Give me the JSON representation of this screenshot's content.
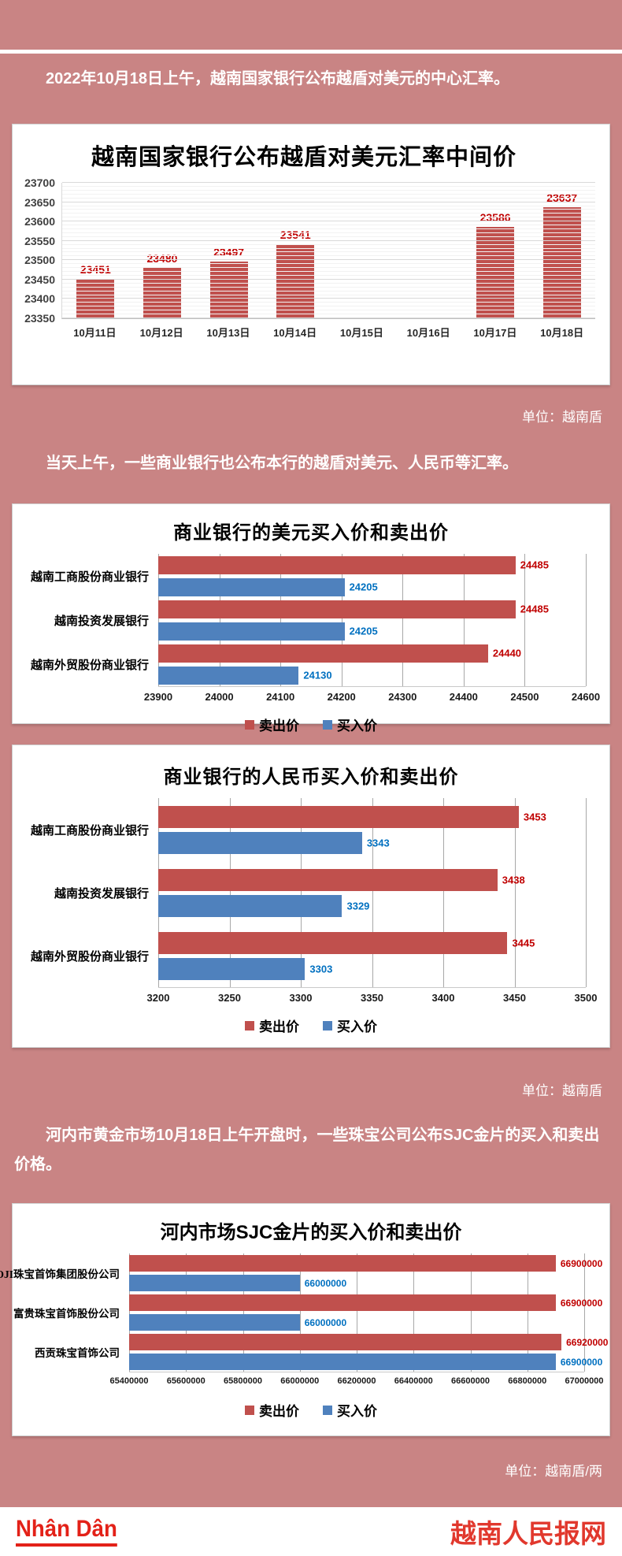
{
  "page": {
    "background": "#c98484",
    "paragraphs": {
      "p1": "2022年10月18日上午，越南国家银行公布越盾对美元的中心汇率。",
      "p2": "当天上午，一些商业银行也公布本行的越盾对美元、人民币等汇率。",
      "p3": "河内市黄金市场10月18日上午开盘时，一些珠宝公司公布SJC金片的买入和卖出价格。"
    },
    "unit_captions": {
      "after_chart1": "单位：越南盾",
      "after_chart3": "单位：越南盾",
      "after_chart4": "单位：越南盾/两"
    },
    "footer": {
      "logo_text": "Nhân Dân",
      "site_name": "越南人民报网",
      "brand_color": "#e32118"
    }
  },
  "colors": {
    "sell_bar": "#C0504D",
    "buy_bar": "#4F81BD",
    "sell_label": "#C00000",
    "buy_label": "#0070C0",
    "gridline_light": "#d9d9d9",
    "gridline_medium": "#a8a8a8"
  },
  "chart_data": [
    {
      "type": "bar",
      "title": "越南国家银行公布越盾对美元汇率中间价",
      "categories": [
        "10月11日",
        "10月12日",
        "10月13日",
        "10月14日",
        "10月15日",
        "10月16日",
        "10月17日",
        "10月18日"
      ],
      "values": [
        23451,
        23480,
        23497,
        23541,
        null,
        null,
        23586,
        23637
      ],
      "ylim": [
        23350,
        23700
      ],
      "ytick_step": 50,
      "ytick_minor_step": 10,
      "bar_color": "#C0504D",
      "label_color": "#C00000",
      "grid": true,
      "legend": "none"
    },
    {
      "type": "bar",
      "orientation": "horizontal",
      "title": "商业银行的美元买入价和卖出价",
      "categories": [
        "越南工商股份商业银行",
        "越南投资发展银行",
        "越南外贸股份商业银行"
      ],
      "series": [
        {
          "name": "卖出价",
          "color": "#C0504D",
          "label_color": "#C00000",
          "values": [
            24485,
            24485,
            24440
          ]
        },
        {
          "name": "买入价",
          "color": "#4F81BD",
          "label_color": "#0070C0",
          "values": [
            24205,
            24205,
            24130
          ]
        }
      ],
      "xlim": [
        23900,
        24600
      ],
      "xtick_step": 100,
      "grid": true,
      "legend_position": "bottom"
    },
    {
      "type": "bar",
      "orientation": "horizontal",
      "title": "商业银行的人民币买入价和卖出价",
      "categories": [
        "越南工商股份商业银行",
        "越南投资发展银行",
        "越南外贸股份商业银行"
      ],
      "series": [
        {
          "name": "卖出价",
          "color": "#C0504D",
          "label_color": "#C00000",
          "values": [
            3453,
            3438,
            3445
          ]
        },
        {
          "name": "买入价",
          "color": "#4F81BD",
          "label_color": "#0070C0",
          "values": [
            3343,
            3329,
            3303
          ]
        }
      ],
      "xlim": [
        3200,
        3500
      ],
      "xtick_step": 50,
      "grid": true,
      "legend_position": "bottom"
    },
    {
      "type": "bar",
      "orientation": "horizontal",
      "title": "河内市场SJC金片的买入价和卖出价",
      "categories": [
        "DOJI珠宝首饰集团股份公司",
        "富贵珠宝首饰股份公司",
        "西贡珠宝首饰公司"
      ],
      "series": [
        {
          "name": "卖出价",
          "color": "#C0504D",
          "label_color": "#C00000",
          "values": [
            66900000,
            66900000,
            66920000
          ]
        },
        {
          "name": "买入价",
          "color": "#4F81BD",
          "label_color": "#0070C0",
          "values": [
            66000000,
            66000000,
            66900000
          ]
        }
      ],
      "xlim": [
        65400000,
        67000000
      ],
      "xtick_step": 200000,
      "grid": true,
      "legend_position": "bottom"
    }
  ]
}
